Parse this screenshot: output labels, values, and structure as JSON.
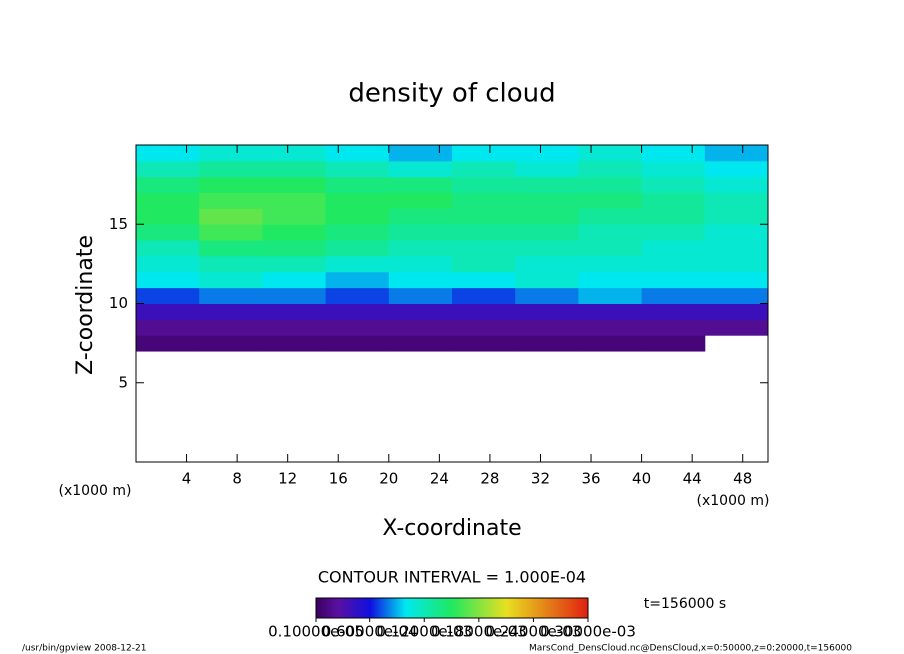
{
  "chart_data": {
    "type": "heatmap",
    "title": "density of cloud",
    "x_label": "X-coordinate",
    "y_label": "Z-coordinate",
    "x_unit": "(x1000 m)",
    "y_unit": "(x1000 m)",
    "x_edges": [
      0,
      5,
      10,
      15,
      20,
      25,
      30,
      35,
      40,
      45,
      50
    ],
    "z_edges": [
      7,
      8,
      9,
      10,
      11,
      12,
      13,
      14,
      15,
      16,
      17,
      18,
      19,
      20
    ],
    "values": [
      [
        1e-05,
        1e-05,
        1e-05,
        1e-05,
        1e-05,
        1e-05,
        1e-05,
        1e-05,
        1e-05,
        null
      ],
      [
        2e-05,
        2e-05,
        2e-05,
        2e-05,
        2e-05,
        2e-05,
        2e-05,
        2e-05,
        2e-05,
        2e-05
      ],
      [
        4e-05,
        4e-05,
        4e-05,
        4e-05,
        4e-05,
        4e-05,
        4e-05,
        4e-05,
        4e-05,
        4e-05
      ],
      [
        7e-05,
        8e-05,
        8e-05,
        7e-05,
        8e-05,
        7e-05,
        8e-05,
        9e-05,
        8e-05,
        8e-05
      ],
      [
        0.0001,
        0.00011,
        0.0001,
        9e-05,
        0.0001,
        0.0001,
        0.00011,
        0.0001,
        0.0001,
        0.0001
      ],
      [
        0.00011,
        0.00012,
        0.00012,
        0.00011,
        0.00011,
        0.00012,
        0.00011,
        0.00011,
        0.00011,
        0.00011
      ],
      [
        0.00012,
        0.00014,
        0.00014,
        0.00013,
        0.00012,
        0.00012,
        0.00012,
        0.00012,
        0.00011,
        0.00011
      ],
      [
        0.00014,
        0.00016,
        0.00015,
        0.00014,
        0.00013,
        0.00013,
        0.00013,
        0.00012,
        0.00012,
        0.00011
      ],
      [
        0.00015,
        0.00017,
        0.00016,
        0.00015,
        0.00014,
        0.00014,
        0.00014,
        0.00013,
        0.00013,
        0.00012
      ],
      [
        0.00015,
        0.00016,
        0.00016,
        0.00015,
        0.00015,
        0.00014,
        0.00014,
        0.00014,
        0.00013,
        0.00012
      ],
      [
        0.00014,
        0.00015,
        0.00015,
        0.00014,
        0.00014,
        0.00013,
        0.00013,
        0.00013,
        0.00012,
        0.00011
      ],
      [
        0.00012,
        0.00013,
        0.00013,
        0.00012,
        0.00011,
        0.00012,
        0.00011,
        0.00012,
        0.00011,
        0.0001
      ],
      [
        0.0001,
        0.00011,
        0.00011,
        0.0001,
        9e-05,
        0.0001,
        0.0001,
        0.00011,
        0.0001,
        9e-05
      ]
    ],
    "xlim": [
      0,
      50
    ],
    "ylim": [
      0,
      20
    ],
    "xticks": [
      4,
      8,
      12,
      16,
      20,
      24,
      28,
      32,
      36,
      40,
      44,
      48
    ],
    "yticks": [
      5,
      10,
      15
    ],
    "colorbar_ticks": [
      {
        "value": 1e-06,
        "label": "0.10000e-05"
      },
      {
        "value": 6e-05,
        "label": "0.60000e-04"
      },
      {
        "value": 0.00012,
        "label": "0.12000e-03"
      },
      {
        "value": 0.00018,
        "label": "0.18000e-03"
      },
      {
        "value": 0.00024,
        "label": "0.24000e-03"
      },
      {
        "value": 0.0003,
        "label": "0.30000e-03"
      }
    ],
    "contour_note": "CONTOUR INTERVAL = 1.000E-04",
    "time_note": "t=156000 s",
    "footer_left": "/usr/bin/gpview  2008-12-21",
    "footer_right": "MarsCond_DensCloud.nc@DensCloud,x=0:50000,z=0:20000,t=156000"
  }
}
